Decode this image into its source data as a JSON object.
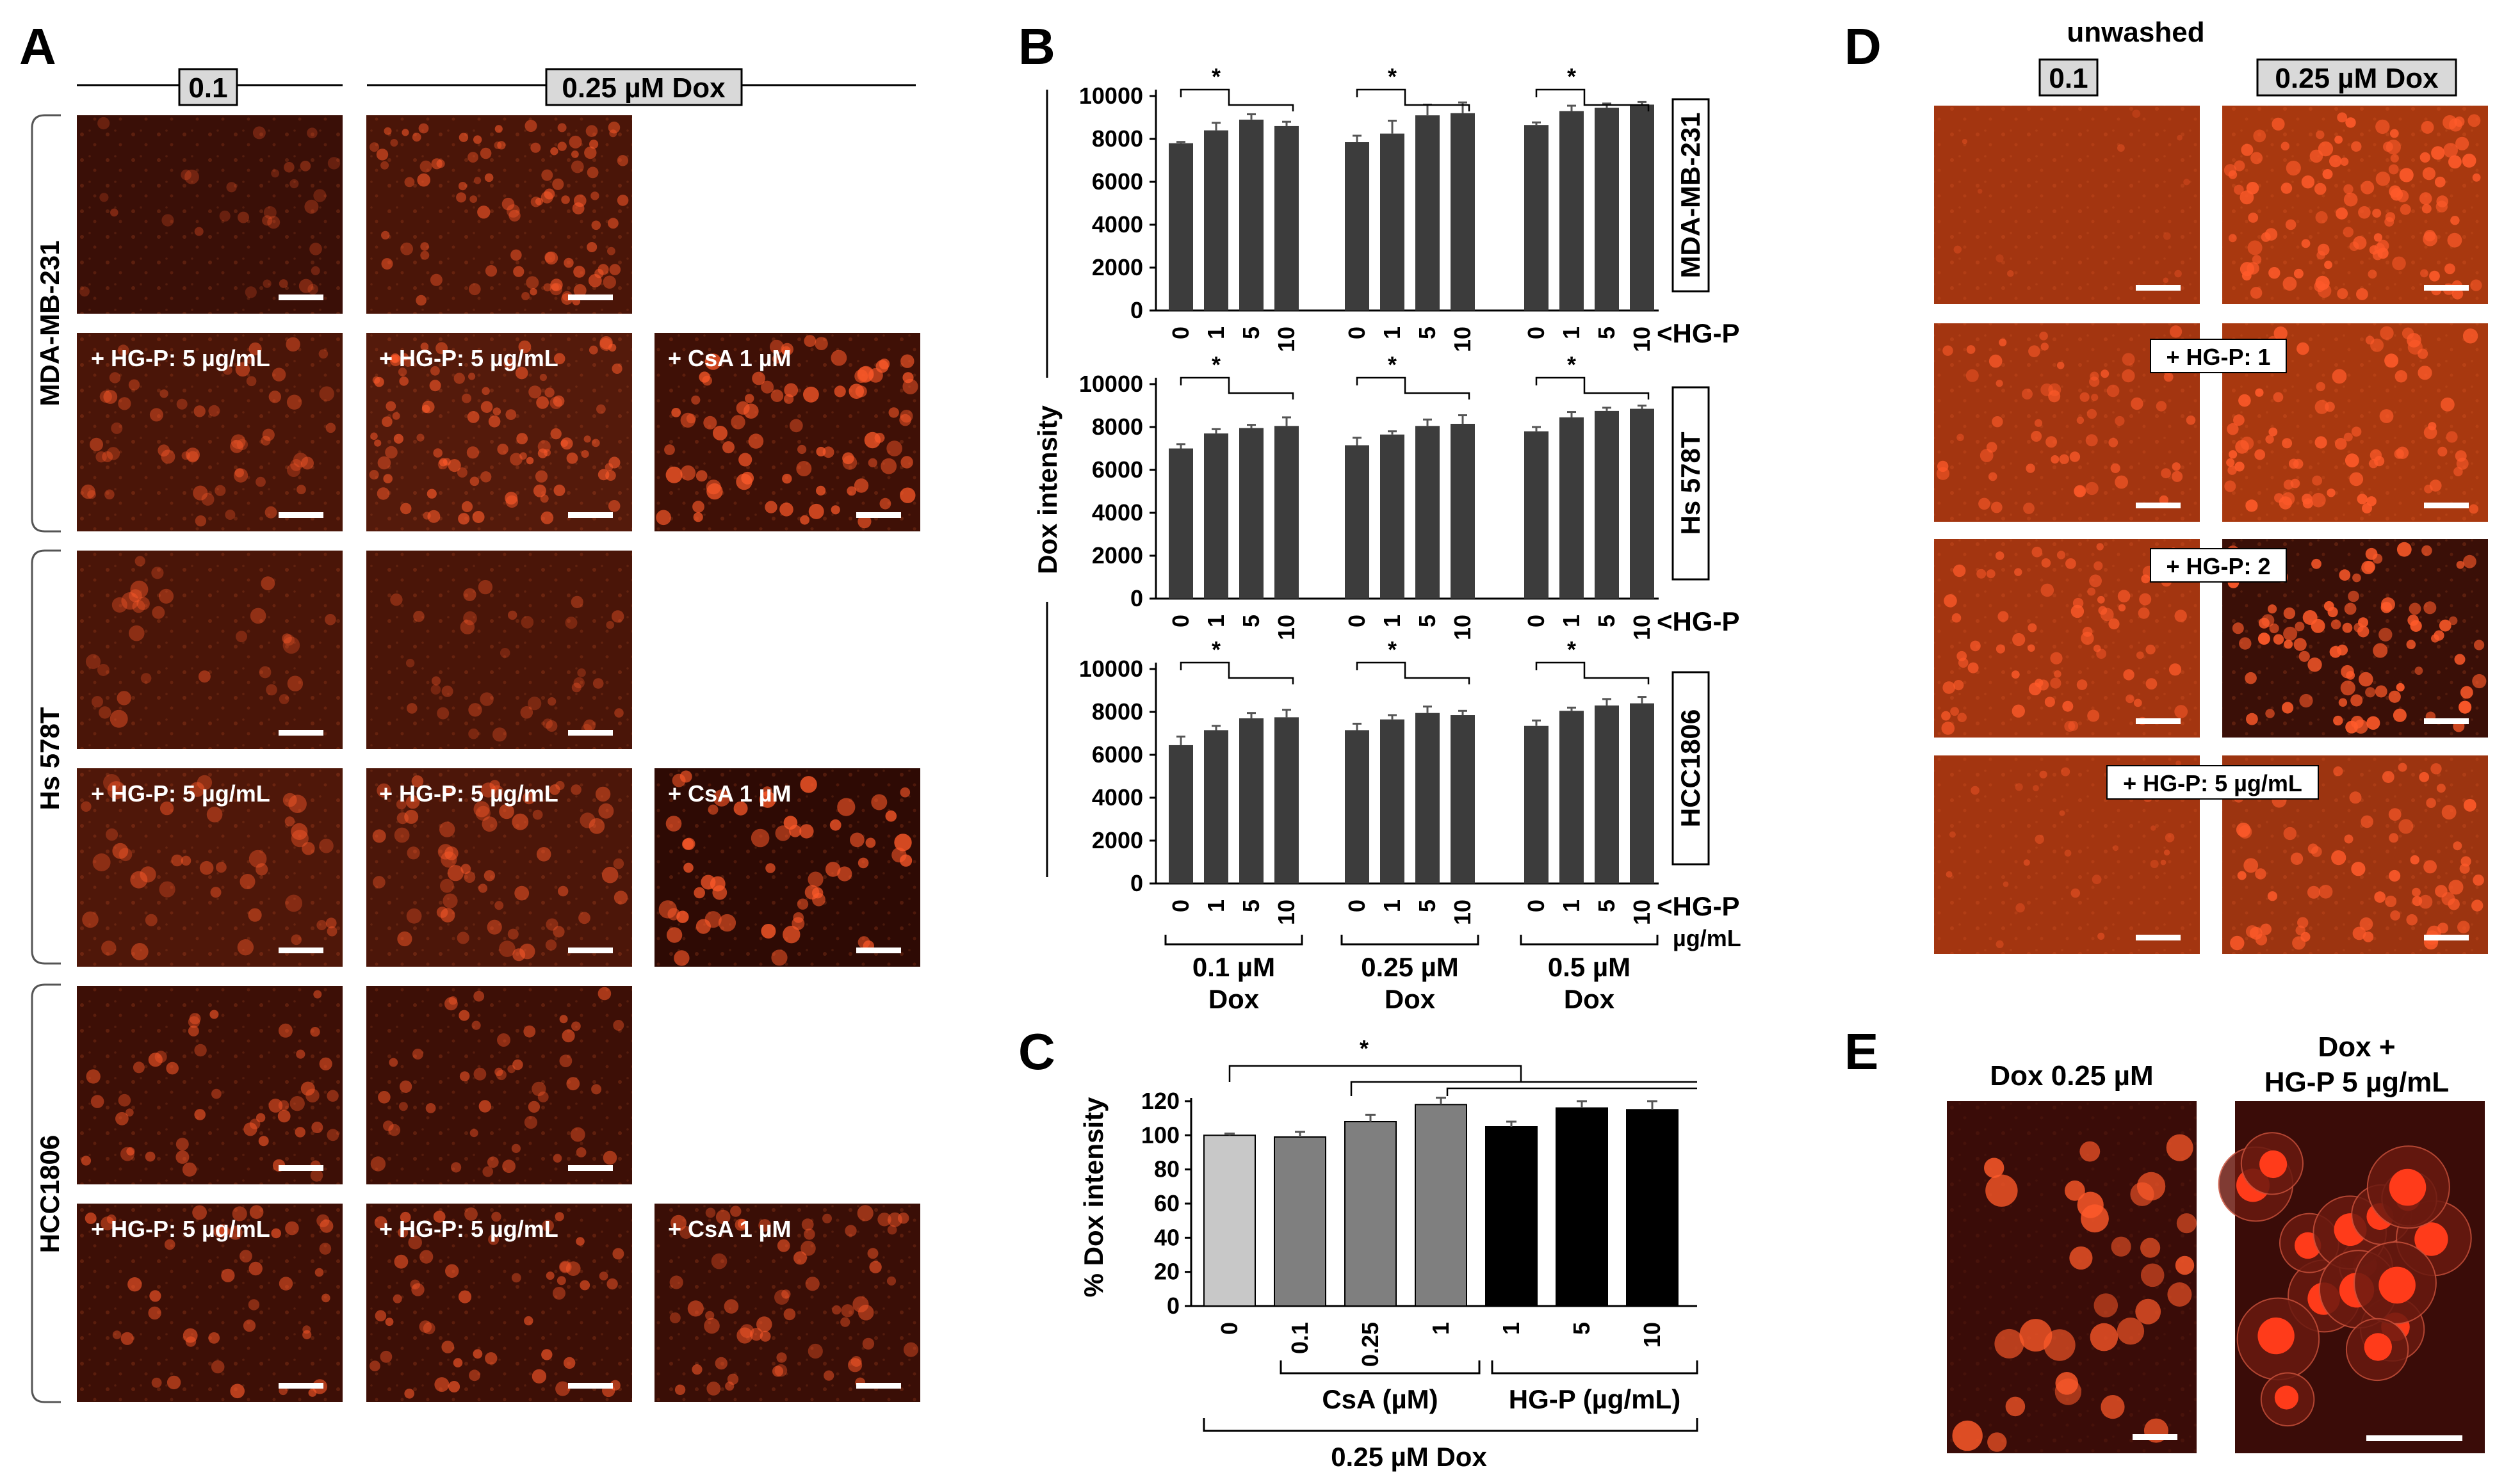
{
  "panels": {
    "A": "A",
    "B": "B",
    "C": "C",
    "D": "D",
    "E": "E"
  },
  "colors": {
    "bar_dark": "#3c3c3c",
    "bar_c": [
      "#c8c8c8",
      "#7f7f7f",
      "#7f7f7f",
      "#7f7f7f",
      "#000000",
      "#000000",
      "#000000"
    ],
    "micrograph_bg": "#4a1408",
    "micrograph_cell": "#ff5a2a"
  },
  "panelA": {
    "col_headers": [
      "0.1",
      "0.25 µM Dox"
    ],
    "row_groups": [
      "MDA-MB-231",
      "Hs 578T",
      "HCC1806"
    ],
    "overlays": {
      "hgp": "+ HG-P: 5 µg/mL",
      "csa": "+ CsA 1 µM"
    }
  },
  "panelB": {
    "ylabel": "Dox intensity",
    "hgp_marker": "<HG-P",
    "hgp_unit": "µg/mL",
    "dox_groups": [
      "0.1 µM",
      "0.25 µM",
      "0.5 µM"
    ],
    "dox_word": "Dox",
    "star": "*"
  },
  "panelC": {
    "ylabel": "% Dox intensity",
    "group_csa": "CsA (µM)",
    "group_hgp": "HG-P (µg/mL)",
    "group_all": "0.25 µM Dox",
    "star": "*"
  },
  "panelD": {
    "title": "unwashed",
    "col_headers": [
      "0.1",
      "0.25 µM Dox"
    ],
    "overlays": [
      "+ HG-P: 1",
      "+ HG-P: 2",
      "+ HG-P: 5 µg/mL"
    ]
  },
  "panelE": {
    "left_label": "Dox 0.25 µM",
    "right_label_line1": "Dox +",
    "right_label_line2": "HG-P 5 µg/mL"
  },
  "chart_data": [
    {
      "type": "bar",
      "title": "MDA-MB-231",
      "ylabel": "Dox intensity",
      "ylim": [
        0,
        10000
      ],
      "yticks": [
        0,
        2000,
        4000,
        6000,
        8000,
        10000
      ],
      "categories": [
        "0",
        "1",
        "5",
        "10",
        "0",
        "1",
        "5",
        "10",
        "0",
        "1",
        "5",
        "10"
      ],
      "groups": [
        "0.1 µM Dox",
        "0.25 µM Dox",
        "0.5 µM Dox"
      ],
      "values": [
        7800,
        8400,
        8900,
        8600,
        7850,
        8250,
        9100,
        9200,
        8650,
        9300,
        9450,
        9600
      ],
      "errors": [
        60,
        350,
        250,
        200,
        300,
        600,
        500,
        500,
        120,
        250,
        200,
        120
      ]
    },
    {
      "type": "bar",
      "title": "Hs 578T",
      "ylabel": "Dox intensity",
      "ylim": [
        0,
        10000
      ],
      "yticks": [
        0,
        2000,
        4000,
        6000,
        8000,
        10000
      ],
      "categories": [
        "0",
        "1",
        "5",
        "10",
        "0",
        "1",
        "5",
        "10",
        "0",
        "1",
        "5",
        "10"
      ],
      "groups": [
        "0.1 µM Dox",
        "0.25 µM Dox",
        "0.5 µM Dox"
      ],
      "values": [
        7000,
        7700,
        7950,
        8050,
        7150,
        7650,
        8050,
        8150,
        7800,
        8450,
        8750,
        8850
      ],
      "errors": [
        200,
        200,
        150,
        400,
        350,
        150,
        300,
        400,
        200,
        250,
        150,
        150
      ]
    },
    {
      "type": "bar",
      "title": "HCC1806",
      "ylabel": "Dox intensity",
      "ylim": [
        0,
        10000
      ],
      "yticks": [
        0,
        2000,
        4000,
        6000,
        8000,
        10000
      ],
      "categories": [
        "0",
        "1",
        "5",
        "10",
        "0",
        "1",
        "5",
        "10",
        "0",
        "1",
        "5",
        "10"
      ],
      "groups": [
        "0.1 µM Dox",
        "0.25 µM Dox",
        "0.5 µM Dox"
      ],
      "values": [
        6450,
        7150,
        7700,
        7750,
        7150,
        7650,
        7950,
        7850,
        7350,
        8050,
        8300,
        8400
      ],
      "errors": [
        400,
        200,
        250,
        350,
        300,
        200,
        300,
        200,
        250,
        150,
        300,
        300
      ]
    },
    {
      "type": "bar",
      "ylabel": "% Dox intensity",
      "ylim": [
        0,
        120
      ],
      "yticks": [
        0,
        20,
        40,
        60,
        80,
        100,
        120
      ],
      "categories": [
        "0",
        "0.1",
        "0.25",
        "1",
        "1",
        "5",
        "10"
      ],
      "values": [
        100,
        99,
        108,
        118,
        105,
        116,
        115
      ],
      "errors": [
        1,
        3,
        4,
        4,
        3,
        4,
        5
      ]
    }
  ]
}
